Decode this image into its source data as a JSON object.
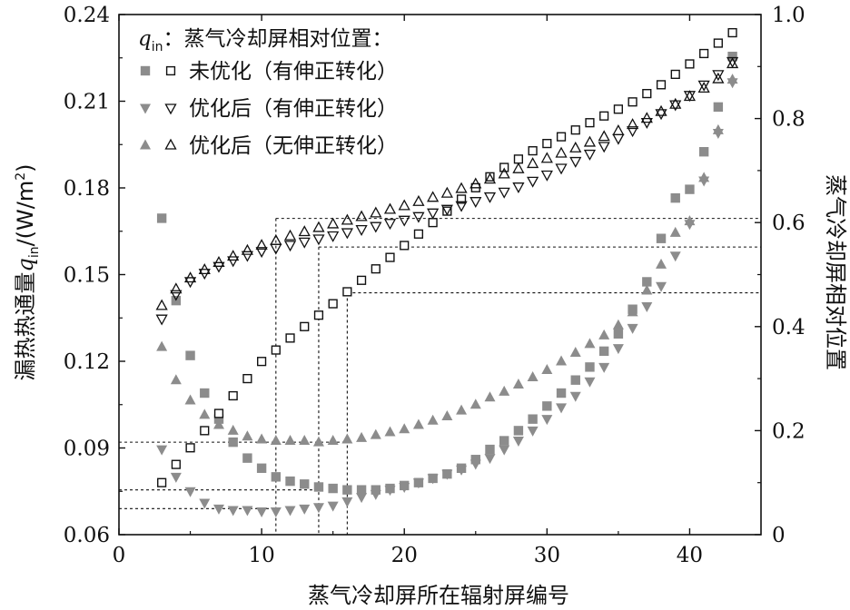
{
  "chart_data": {
    "type": "scatter",
    "xlabel": "蒸气冷却屏所在辐射屏编号",
    "ylabel_left": "漏热热通量q_in/(W/m²)",
    "ylabel_left_parts": {
      "main": "漏热热通量",
      "q": "q",
      "sub": "in",
      "rest": "/(W/m",
      "sup": "2",
      "close": ")"
    },
    "ylabel_right": "蒸气冷却屏相对位置",
    "xlim": [
      0,
      45
    ],
    "ylim_left": [
      0.06,
      0.24
    ],
    "ylim_right": [
      0,
      1.0
    ],
    "x_ticks": [
      "0",
      "10",
      "20",
      "30",
      "40"
    ],
    "y_left_ticks": [
      "0.06",
      "0.09",
      "0.12",
      "0.15",
      "0.18",
      "0.21",
      "0.24"
    ],
    "y_right_ticks": [
      "0",
      "0.2",
      "0.4",
      "0.6",
      "0.8",
      "1.0"
    ],
    "grid": false,
    "legend": {
      "placement": "top-left",
      "header": "：蒸气冷却屏相对位置：",
      "header_q": "q",
      "header_sub": "in",
      "items": [
        "未优化（有伸正转化）",
        "优化后（有伸正转化）",
        "优化后（无伸正转化）"
      ]
    },
    "colors": {
      "filled": "#8c8c8c",
      "hollow": "#111111"
    },
    "x": [
      3,
      4,
      5,
      6,
      7,
      8,
      9,
      10,
      11,
      12,
      13,
      14,
      15,
      16,
      17,
      18,
      19,
      20,
      21,
      22,
      23,
      24,
      25,
      26,
      27,
      28,
      29,
      30,
      31,
      32,
      33,
      34,
      35,
      36,
      37,
      38,
      39,
      40,
      41,
      42,
      43
    ],
    "series": [
      {
        "name": "未优化（有伸正转化）",
        "kind": "flux",
        "marker": "square-filled",
        "axis": "left",
        "values": [
          0.1695,
          0.141,
          0.122,
          0.109,
          0.1,
          0.092,
          0.0865,
          0.083,
          0.08,
          0.0785,
          0.0775,
          0.0765,
          0.076,
          0.0755,
          0.0755,
          0.0755,
          0.076,
          0.077,
          0.078,
          0.0795,
          0.081,
          0.083,
          0.086,
          0.0895,
          0.0925,
          0.096,
          0.1,
          0.1045,
          0.109,
          0.1135,
          0.118,
          0.1235,
          0.1295,
          0.138,
          0.1475,
          0.1625,
          0.1765,
          0.1795,
          0.1925,
          0.208,
          0.2255
        ]
      },
      {
        "name": "优化后（有伸正转化）",
        "kind": "flux",
        "marker": "triangle-down-filled",
        "axis": "left",
        "values": [
          0.0895,
          0.08,
          0.075,
          0.071,
          0.069,
          0.0685,
          0.0685,
          0.068,
          0.068,
          0.0685,
          0.069,
          0.0695,
          0.07,
          0.0715,
          0.073,
          0.074,
          0.0755,
          0.0765,
          0.078,
          0.0795,
          0.081,
          0.0825,
          0.0845,
          0.0865,
          0.0895,
          0.0925,
          0.096,
          0.1,
          0.104,
          0.108,
          0.113,
          0.118,
          0.1245,
          0.1315,
          0.139,
          0.146,
          0.1565,
          0.1675,
          0.1825,
          0.199,
          0.2165
        ]
      },
      {
        "name": "优化后（无伸正转化）",
        "kind": "flux",
        "marker": "triangle-up-filled",
        "axis": "left",
        "values": [
          0.125,
          0.1135,
          0.1065,
          0.1015,
          0.098,
          0.096,
          0.094,
          0.093,
          0.0925,
          0.0925,
          0.0925,
          0.092,
          0.0925,
          0.093,
          0.0935,
          0.0945,
          0.0955,
          0.0965,
          0.098,
          0.0995,
          0.101,
          0.103,
          0.105,
          0.1075,
          0.1095,
          0.112,
          0.1145,
          0.117,
          0.12,
          0.123,
          0.126,
          0.129,
          0.1325,
          0.137,
          0.1445,
          0.1535,
          0.1645,
          0.1685,
          0.1835,
          0.2,
          0.2175
        ]
      },
      {
        "name": "未优化（有伸正转化）",
        "kind": "position",
        "marker": "square-hollow",
        "axis": "right",
        "values": [
          0.1,
          0.135,
          0.167,
          0.2,
          0.233,
          0.267,
          0.3,
          0.333,
          0.355,
          0.378,
          0.4,
          0.422,
          0.444,
          0.467,
          0.489,
          0.511,
          0.533,
          0.556,
          0.578,
          0.6,
          0.622,
          0.645,
          0.667,
          0.688,
          0.706,
          0.722,
          0.738,
          0.752,
          0.765,
          0.778,
          0.792,
          0.805,
          0.818,
          0.832,
          0.848,
          0.865,
          0.885,
          0.905,
          0.925,
          0.945,
          0.965
        ]
      },
      {
        "name": "优化后（有伸正转化）",
        "kind": "position",
        "marker": "triangle-down-hollow",
        "axis": "right",
        "values": [
          0.415,
          0.462,
          0.487,
          0.503,
          0.516,
          0.527,
          0.537,
          0.545,
          0.551,
          0.557,
          0.563,
          0.569,
          0.575,
          0.581,
          0.587,
          0.593,
          0.599,
          0.605,
          0.612,
          0.619,
          0.626,
          0.633,
          0.641,
          0.65,
          0.659,
          0.669,
          0.68,
          0.692,
          0.705,
          0.718,
          0.732,
          0.747,
          0.762,
          0.777,
          0.793,
          0.81,
          0.827,
          0.845,
          0.865,
          0.885,
          0.91
        ]
      },
      {
        "name": "优化后（无伸正转化）",
        "kind": "position",
        "marker": "triangle-up-hollow",
        "axis": "right",
        "values": [
          0.44,
          0.472,
          0.493,
          0.509,
          0.523,
          0.535,
          0.546,
          0.556,
          0.565,
          0.574,
          0.582,
          0.59,
          0.597,
          0.604,
          0.611,
          0.618,
          0.625,
          0.632,
          0.64,
          0.648,
          0.656,
          0.665,
          0.674,
          0.683,
          0.693,
          0.703,
          0.713,
          0.723,
          0.733,
          0.743,
          0.754,
          0.765,
          0.776,
          0.788,
          0.8,
          0.813,
          0.827,
          0.842,
          0.858,
          0.876,
          0.905
        ]
      }
    ],
    "reference_lines": [
      {
        "x": 11,
        "flux_left": 0.069,
        "position_right": 0.608
      },
      {
        "x": 14,
        "flux_left": 0.0755,
        "position_right": 0.553
      },
      {
        "x": 16,
        "flux_left": 0.092,
        "position_right": 0.465
      }
    ]
  }
}
